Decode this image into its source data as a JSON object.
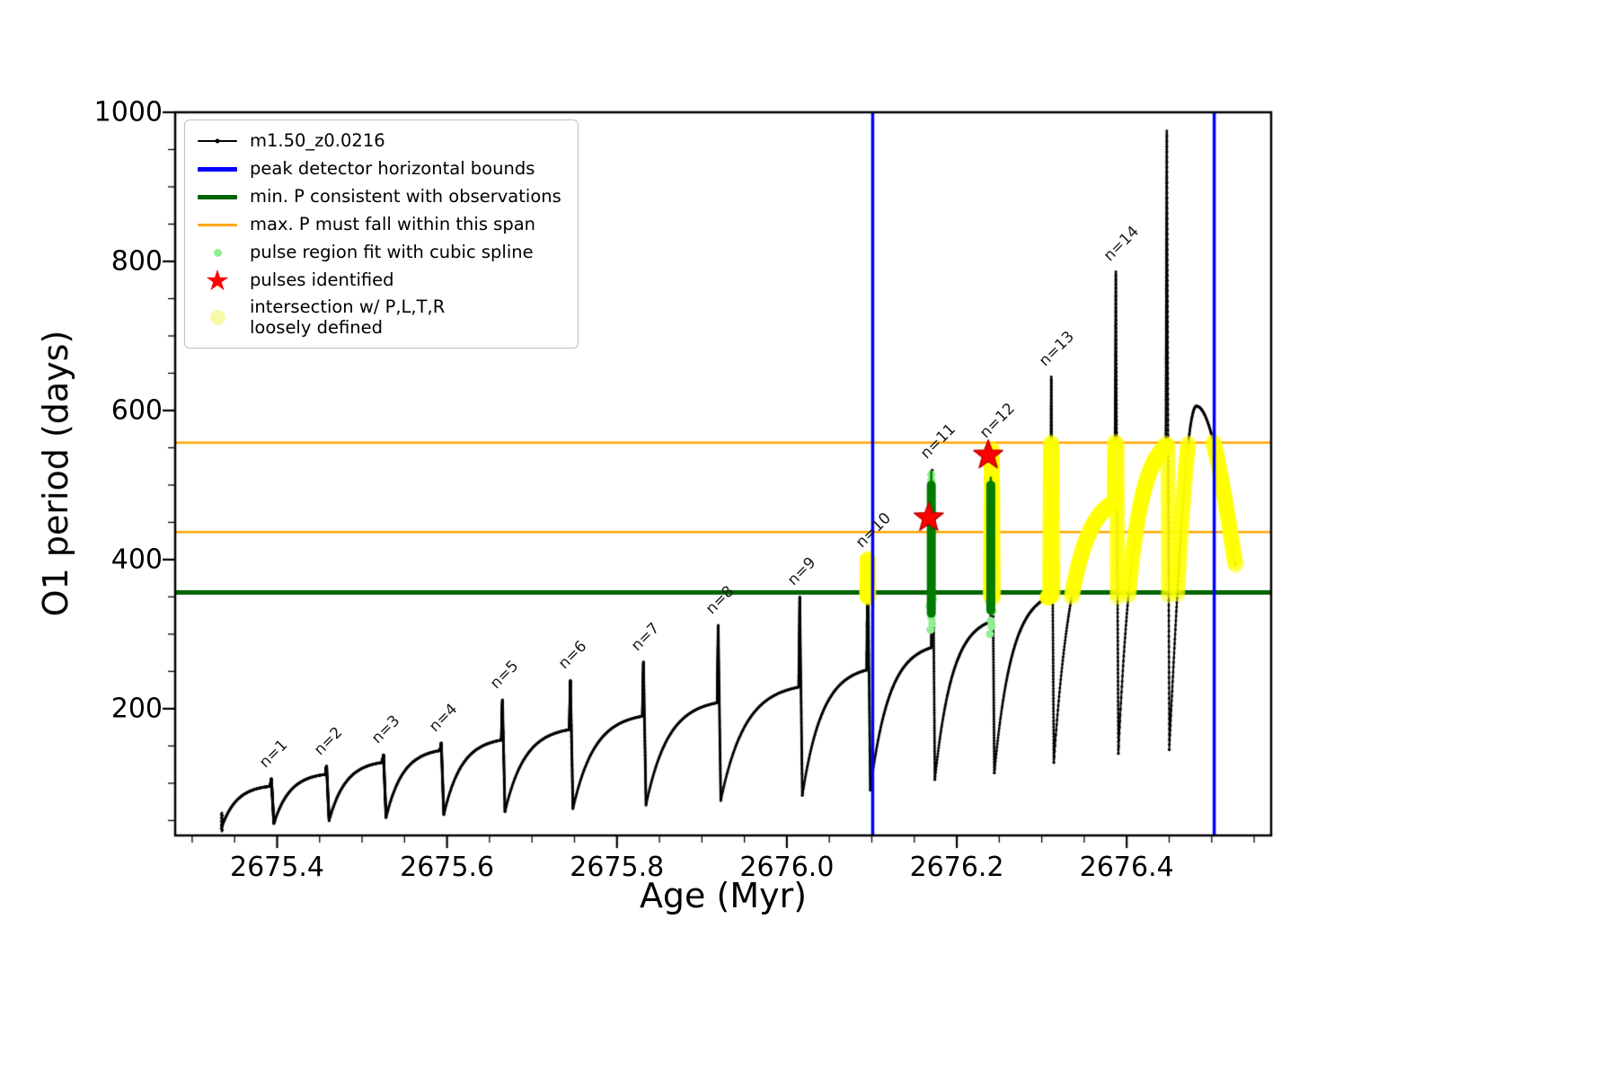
{
  "chart_data": {
    "type": "line",
    "title": "",
    "xlabel": "Age (Myr)",
    "ylabel": "O1 period (days)",
    "xlim": [
      2675.28,
      2676.57
    ],
    "ylim": [
      30,
      1000
    ],
    "xticks": [
      2675.4,
      2675.6,
      2675.8,
      2676.0,
      2676.2,
      2676.4
    ],
    "xtick_labels": [
      "2675.4",
      "2675.6",
      "2675.8",
      "2676.0",
      "2676.2",
      "2676.4"
    ],
    "yticks": [
      200,
      400,
      600,
      800,
      1000
    ],
    "ytick_labels": [
      "200",
      "400",
      "600",
      "800",
      "1000"
    ],
    "x_minor_step": 0.05,
    "y_minor_step": 50,
    "grid": false,
    "legend_position": "upper-left",
    "series": [
      {
        "name": "m1.50_z0.0216",
        "color": "#000000",
        "style": "line-with-dots"
      }
    ],
    "curve_x_start": 2675.335,
    "spike_rise_width": 0.0012,
    "spike_fall_width": 0.003,
    "pulses": [
      {
        "n": "n=1",
        "x_peak": 2675.392,
        "y_min": 42,
        "y_plateau": 96,
        "y_peak": 106
      },
      {
        "n": "n=2",
        "x_peak": 2675.457,
        "y_min": 46,
        "y_plateau": 112,
        "y_peak": 123
      },
      {
        "n": "n=3",
        "x_peak": 2675.524,
        "y_min": 50,
        "y_plateau": 128,
        "y_peak": 138
      },
      {
        "n": "n=4",
        "x_peak": 2675.592,
        "y_min": 54,
        "y_plateau": 144,
        "y_peak": 154
      },
      {
        "n": "n=5",
        "x_peak": 2675.664,
        "y_min": 58,
        "y_plateau": 158,
        "y_peak": 212
      },
      {
        "n": "n=6",
        "x_peak": 2675.744,
        "y_min": 62,
        "y_plateau": 172,
        "y_peak": 238
      },
      {
        "n": "n=7",
        "x_peak": 2675.83,
        "y_min": 66,
        "y_plateau": 190,
        "y_peak": 263
      },
      {
        "n": "n=8",
        "x_peak": 2675.918,
        "y_min": 71,
        "y_plateau": 208,
        "y_peak": 312
      },
      {
        "n": "n=9",
        "x_peak": 2676.014,
        "y_min": 77,
        "y_plateau": 229,
        "y_peak": 350
      },
      {
        "n": "n=10",
        "x_peak": 2676.094,
        "y_min": 84,
        "y_plateau": 252,
        "y_peak": 401
      },
      {
        "n": "n=11",
        "x_peak": 2676.17,
        "y_min": 91,
        "y_plateau": 282,
        "y_peak": 520
      },
      {
        "n": "n=12",
        "x_peak": 2676.24,
        "y_min": 105,
        "y_plateau": 317,
        "y_peak": 548
      },
      {
        "n": "n=13",
        "x_peak": 2676.31,
        "y_min": 114,
        "y_plateau": 351,
        "y_peak": 645
      },
      {
        "n": "n=14",
        "x_peak": 2676.386,
        "y_min": 128,
        "y_plateau": 478,
        "y_peak": 786
      },
      {
        "n": null,
        "x_peak": 2676.446,
        "y_min": 140,
        "y_plateau": 552,
        "y_peak": 975
      }
    ],
    "tail_hump": {
      "x_start": 2676.45,
      "y_start": 145,
      "x_top": 2676.482,
      "y_top": 606,
      "x_end": 2676.528,
      "y_end": 393
    },
    "vlines": {
      "label": "peak detector horizontal bounds",
      "color": "#0000ff",
      "xs": [
        2676.101,
        2676.503
      ]
    },
    "hline_min_p": {
      "label": "min. P consistent with observations",
      "color": "#006400",
      "y": 356
    },
    "hlines_max_p": {
      "label": "max. P must fall within this span",
      "color": "#ffa500",
      "ys": [
        437,
        557
      ]
    },
    "pulse_fit_columns": {
      "label": "pulse region fit with cubic spline",
      "color": "#007a00",
      "columns": [
        {
          "x": 2676.17,
          "y0": 328,
          "y1": 500,
          "tip": 519
        },
        {
          "x": 2676.24,
          "y0": 332,
          "y1": 500,
          "tip": 510
        }
      ]
    },
    "pulse_fit_dots": {
      "color": "#90ee90",
      "points": [
        [
          2676.169,
          306
        ],
        [
          2676.171,
          314
        ],
        [
          2676.17,
          322
        ],
        [
          2676.168,
          338
        ],
        [
          2676.172,
          347
        ],
        [
          2676.239,
          300
        ],
        [
          2676.241,
          310
        ],
        [
          2676.24,
          318
        ],
        [
          2676.242,
          331
        ],
        [
          2676.238,
          344
        ],
        [
          2676.17,
          506
        ],
        [
          2676.17,
          514
        ]
      ]
    },
    "stars": {
      "label": "pulses identified",
      "color": "#ff0000",
      "points": [
        [
          2676.167,
          456
        ],
        [
          2676.237,
          540
        ]
      ]
    },
    "intersection": {
      "label": "intersection w/ P,L,T,R\nloosely defined",
      "color": "#ffff33",
      "x_ranges": [
        [
          2676.086,
          2676.102
        ],
        [
          2676.232,
          2676.25
        ],
        [
          2676.296,
          2676.535
        ]
      ],
      "y_range": [
        349,
        558
      ]
    }
  },
  "legend": {
    "entries": [
      {
        "icon": "series-line-icon",
        "type": "line-dot",
        "color": "#000000",
        "height": 2.5,
        "label": "m1.50_z0.0216"
      },
      {
        "icon": "bounds-line-icon",
        "type": "line",
        "color": "#0000ff",
        "height": 5,
        "label": "peak detector horizontal bounds"
      },
      {
        "icon": "min-p-line-icon",
        "type": "line",
        "color": "#006400",
        "height": 5,
        "label": "min. P consistent with observations"
      },
      {
        "icon": "max-p-line-icon",
        "type": "line",
        "color": "#ffa500",
        "height": 3,
        "label": "max. P must fall within this span"
      },
      {
        "icon": "spline-dot-icon",
        "type": "dot",
        "color": "#90ee90",
        "size": 9,
        "label": "pulse region fit with cubic spline"
      },
      {
        "icon": "pulse-star-icon",
        "type": "star",
        "color": "#ff0000",
        "size": 32,
        "label": "pulses identified"
      },
      {
        "icon": "intersection-dot-icon",
        "type": "dot",
        "color": "#f6f9a9",
        "size": 17,
        "label": "intersection w/ P,L,T,R\nloosely defined"
      }
    ]
  }
}
